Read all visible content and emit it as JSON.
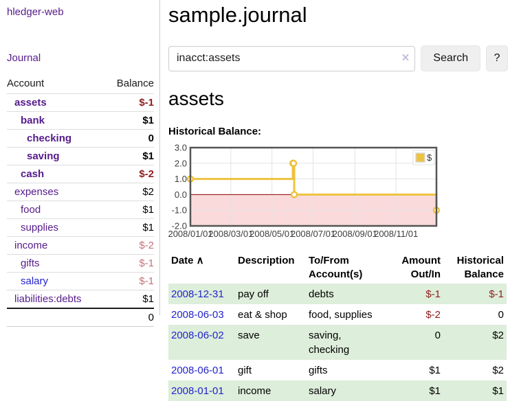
{
  "colors": {
    "purple_link": "#551a8b",
    "blue_link": "#2323cd",
    "negative_strong": "#8f1d1d",
    "negative_soft": "#c3737b",
    "row_stripe_green": "#ddeeda",
    "series_gold": "#edc240"
  },
  "sidebar": {
    "app_title": "hledger-web",
    "nav_journal": "Journal",
    "columns": {
      "account": "Account",
      "balance": "Balance"
    },
    "accounts": [
      {
        "name": "assets",
        "level": 1,
        "bold": true,
        "balance": "$-1",
        "balance_tone": "neg"
      },
      {
        "name": "bank",
        "level": 2,
        "bold": true,
        "balance": "$1",
        "balance_tone": "pos"
      },
      {
        "name": "checking",
        "level": 3,
        "bold": true,
        "balance": "0",
        "balance_tone": "pos"
      },
      {
        "name": "saving",
        "level": 3,
        "bold": true,
        "balance": "$1",
        "balance_tone": "pos"
      },
      {
        "name": "cash",
        "level": 2,
        "bold": true,
        "balance": "$-2",
        "balance_tone": "neg"
      },
      {
        "name": "expenses",
        "level": 1,
        "bold": false,
        "balance": "$2",
        "balance_tone": "pos"
      },
      {
        "name": "food",
        "level": 2,
        "bold": false,
        "balance": "$1",
        "balance_tone": "pos"
      },
      {
        "name": "supplies",
        "level": 2,
        "bold": false,
        "balance": "$1",
        "balance_tone": "pos"
      },
      {
        "name": "income",
        "level": 1,
        "bold": false,
        "balance": "$-2",
        "balance_tone": "negsoft"
      },
      {
        "name": "gifts",
        "level": 2,
        "bold": false,
        "balance": "$-1",
        "balance_tone": "negsoft"
      },
      {
        "name": "salary",
        "level": 2,
        "bold": false,
        "balance": "$-1",
        "balance_tone": "negsoft",
        "link_tone": "blue"
      },
      {
        "name": "liabilities:debts",
        "level": 1,
        "bold": false,
        "balance": "$1",
        "balance_tone": "pos"
      }
    ],
    "total": "0"
  },
  "header": {
    "title": "sample.journal"
  },
  "search": {
    "value": "inacct:assets",
    "clear_icon": "×",
    "button_label": "Search",
    "help_label": "?"
  },
  "account_page": {
    "title": "assets",
    "chart_heading": "Historical Balance:"
  },
  "chart_data": {
    "type": "line",
    "step": true,
    "title": "Historical Balance:",
    "legend": {
      "label": "$",
      "position": "top-right"
    },
    "x_range": [
      "2008-01-01",
      "2008-12-31"
    ],
    "ylim": [
      -2,
      3
    ],
    "yticks": [
      {
        "v": 3,
        "label": "3.0"
      },
      {
        "v": 2,
        "label": "2.0"
      },
      {
        "v": 1,
        "label": "1.0"
      },
      {
        "v": 0,
        "label": "0.0"
      },
      {
        "v": -1,
        "label": "-1.0"
      },
      {
        "v": -2,
        "label": "-2.0"
      }
    ],
    "xticks": [
      {
        "date": "2008-01-01",
        "label": "2008/01/01"
      },
      {
        "date": "2008-03-01",
        "label": "2008/03/01"
      },
      {
        "date": "2008-05-01",
        "label": "2008/05/01"
      },
      {
        "date": "2008-07-01",
        "label": "2008/07/01"
      },
      {
        "date": "2008-09-01",
        "label": "2008/09/01"
      },
      {
        "date": "2008-11-01",
        "label": "2008/11/01"
      }
    ],
    "series": [
      {
        "name": "$",
        "color": "#edc240",
        "points": [
          {
            "x": "2008-01-01",
            "y": 1
          },
          {
            "x": "2008-06-01",
            "y": 2
          },
          {
            "x": "2008-06-02",
            "y": 2
          },
          {
            "x": "2008-06-03",
            "y": 0
          },
          {
            "x": "2008-12-31",
            "y": -1
          }
        ]
      }
    ],
    "negative_fill": "#fadadb",
    "zero_line_color": "#8b0000",
    "grid_color": "#e3e3e3",
    "border_color": "#545454",
    "grid_on": true
  },
  "register": {
    "sort_indicator": "∧",
    "columns": [
      {
        "label": "Date",
        "align": "left",
        "sorted": true
      },
      {
        "label": "Description",
        "align": "left"
      },
      {
        "label": "To/From Account(s)",
        "align": "left"
      },
      {
        "label": "Amount Out/In",
        "align": "right"
      },
      {
        "label": "Historical Balance",
        "align": "right"
      }
    ],
    "rows": [
      {
        "date": "2008-12-31",
        "description": "pay off",
        "accounts": "debts",
        "amount": "$-1",
        "balance": "$-1"
      },
      {
        "date": "2008-06-03",
        "description": "eat & shop",
        "accounts": "food, supplies",
        "amount": "$-2",
        "balance": "0"
      },
      {
        "date": "2008-06-02",
        "description": "save",
        "accounts": "saving, checking",
        "amount": "0",
        "balance": "$2"
      },
      {
        "date": "2008-06-01",
        "description": "gift",
        "accounts": "gifts",
        "amount": "$1",
        "balance": "$2"
      },
      {
        "date": "2008-01-01",
        "description": "income",
        "accounts": "salary",
        "amount": "$1",
        "balance": "$1"
      }
    ]
  }
}
